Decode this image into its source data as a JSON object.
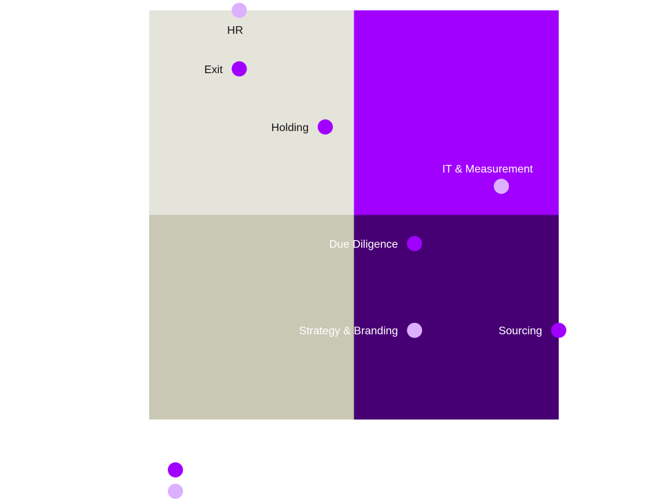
{
  "chart_data": {
    "type": "scatter",
    "title": "",
    "xlabel": "",
    "ylabel": "",
    "xlim": [
      0,
      1
    ],
    "ylim": [
      0,
      1
    ],
    "grid": false,
    "quadrant_colors": {
      "top_left": "#e5e4db",
      "top_right": "#a100ff",
      "bottom_left": "#c9c8b5",
      "bottom_right": "#460073"
    },
    "series": [
      {
        "color": "#a100ff"
      },
      {
        "color": "#dcafff"
      }
    ],
    "points": [
      {
        "label": "HR",
        "x": 0.22,
        "y": 1.0,
        "series": 1,
        "label_pos": "below"
      },
      {
        "label": "Exit",
        "x": 0.22,
        "y": 0.857,
        "series": 0,
        "label_pos": "left"
      },
      {
        "label": "Holding",
        "x": 0.43,
        "y": 0.715,
        "series": 0,
        "label_pos": "left"
      },
      {
        "label": "IT & Measurement",
        "x": 0.86,
        "y": 0.57,
        "series": 1,
        "label_pos": "above"
      },
      {
        "label": "Due Diligence",
        "x": 0.648,
        "y": 0.43,
        "series": 0,
        "label_pos": "left"
      },
      {
        "label": "Strategy & Branding",
        "x": 0.648,
        "y": 0.218,
        "series": 1,
        "label_pos": "left"
      },
      {
        "label": "Sourcing",
        "x": 1.0,
        "y": 0.218,
        "series": 0,
        "label_pos": "left"
      }
    ]
  }
}
